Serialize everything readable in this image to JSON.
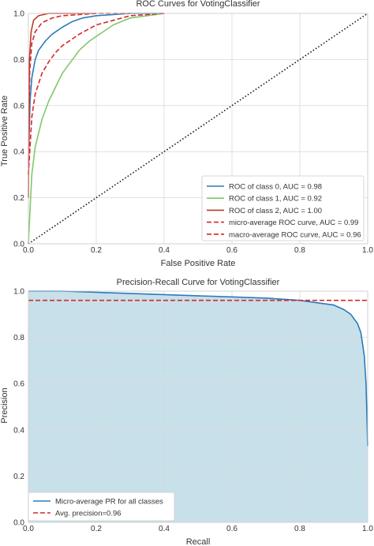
{
  "chart_data": [
    {
      "type": "line",
      "title": "ROC Curves for VotingClassifier",
      "xlabel": "False Positive Rate",
      "ylabel": "True Positive Rate",
      "xlim": [
        0,
        1
      ],
      "ylim": [
        0,
        1
      ],
      "xticks": [
        "0.0",
        "0.2",
        "0.4",
        "0.6",
        "0.8",
        "1.0"
      ],
      "yticks": [
        "0.0",
        "0.2",
        "0.4",
        "0.6",
        "0.8",
        "1.0"
      ],
      "grid": true,
      "legend_position": "bottom-right",
      "series": [
        {
          "name": "ROC of class 0, AUC = 0.98",
          "color": "#2b7bba",
          "dash": "solid",
          "x": [
            0,
            0.005,
            0.01,
            0.02,
            0.03,
            0.05,
            0.07,
            0.1,
            0.13,
            0.16,
            0.2,
            0.25,
            0.3,
            0.4
          ],
          "y": [
            0.35,
            0.62,
            0.72,
            0.8,
            0.84,
            0.88,
            0.91,
            0.94,
            0.965,
            0.98,
            0.99,
            0.995,
            1.0,
            1.0
          ]
        },
        {
          "name": "ROC of class 1, AUC = 0.92",
          "color": "#7fc96a",
          "dash": "solid",
          "x": [
            0,
            0.005,
            0.01,
            0.02,
            0.04,
            0.06,
            0.08,
            0.1,
            0.12,
            0.15,
            0.18,
            0.2,
            0.25,
            0.3,
            0.35,
            0.4
          ],
          "y": [
            0.0,
            0.15,
            0.3,
            0.42,
            0.54,
            0.62,
            0.68,
            0.74,
            0.78,
            0.84,
            0.88,
            0.9,
            0.95,
            0.98,
            0.99,
            1.0
          ]
        },
        {
          "name": "ROC of class 2, AUC = 1.00",
          "color": "#c0392b",
          "dash": "solid",
          "x": [
            0,
            0.003,
            0.008,
            0.015,
            0.03,
            0.06,
            0.1,
            0.2
          ],
          "y": [
            0.2,
            0.8,
            0.92,
            0.97,
            0.99,
            1.0,
            1.0,
            1.0
          ]
        },
        {
          "name": "micro-average ROC curve, AUC = 0.99",
          "color": "#d62728",
          "dash": "dashed",
          "x": [
            0,
            0.004,
            0.01,
            0.02,
            0.04,
            0.07,
            0.1,
            0.15,
            0.2,
            0.3
          ],
          "y": [
            0.3,
            0.75,
            0.87,
            0.92,
            0.96,
            0.98,
            0.99,
            0.995,
            1.0,
            1.0
          ]
        },
        {
          "name": "macro-average ROC curve, AUC = 0.96",
          "color": "#d62728",
          "dash": "dashed",
          "x": [
            0,
            0.01,
            0.02,
            0.04,
            0.06,
            0.08,
            0.1,
            0.15,
            0.2,
            0.25,
            0.3,
            0.4
          ],
          "y": [
            0.3,
            0.55,
            0.65,
            0.74,
            0.79,
            0.83,
            0.86,
            0.91,
            0.95,
            0.97,
            0.99,
            1.0
          ]
        },
        {
          "name": "",
          "color": "#111111",
          "dash": "dotted",
          "x": [
            0,
            1
          ],
          "y": [
            0,
            1
          ]
        }
      ]
    },
    {
      "type": "area",
      "title": "Precision-Recall Curve for VotingClassifier",
      "xlabel": "Recall",
      "ylabel": "Precision",
      "xlim": [
        0,
        1
      ],
      "ylim": [
        0,
        1
      ],
      "xticks": [
        "0.0",
        "0.2",
        "0.4",
        "0.6",
        "0.8",
        "1.0"
      ],
      "yticks": [
        "0.0",
        "0.2",
        "0.4",
        "0.6",
        "0.8",
        "1.0"
      ],
      "grid": true,
      "legend_position": "bottom-left",
      "fill_color": "#c8e0ea",
      "series": [
        {
          "name": "Micro-average PR for all classes",
          "color": "#2b7bba",
          "dash": "solid",
          "x": [
            0,
            0.05,
            0.1,
            0.2,
            0.3,
            0.4,
            0.5,
            0.6,
            0.7,
            0.8,
            0.85,
            0.9,
            0.93,
            0.95,
            0.97,
            0.98,
            0.99,
            0.995,
            1.0
          ],
          "y": [
            1.0,
            1.0,
            1.0,
            0.995,
            0.99,
            0.985,
            0.98,
            0.975,
            0.97,
            0.96,
            0.95,
            0.94,
            0.92,
            0.9,
            0.86,
            0.82,
            0.72,
            0.6,
            0.33
          ]
        },
        {
          "name": "Avg. precision=0.96",
          "color": "#d62728",
          "dash": "dashed",
          "x": [
            0,
            1
          ],
          "y": [
            0.96,
            0.96
          ]
        }
      ]
    }
  ]
}
